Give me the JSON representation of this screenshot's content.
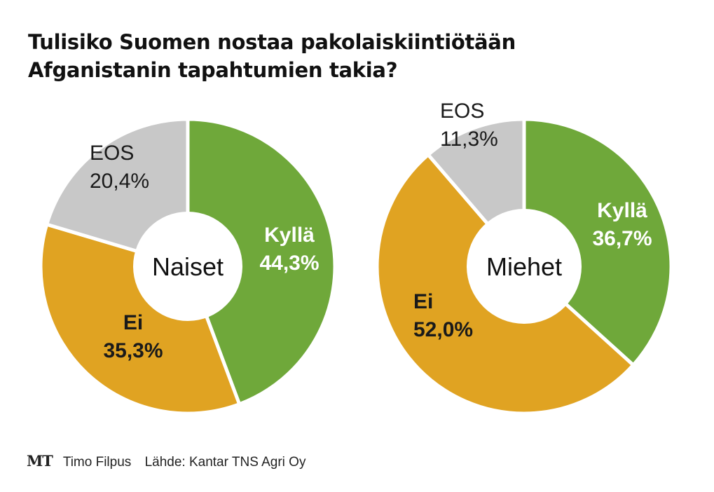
{
  "title": {
    "line1": "Tulisiko Suomen nostaa pakolaiskiintiötään",
    "line2": "Afganistanin tapahtumien takia?"
  },
  "colors": {
    "kylla": "#6fa83a",
    "ei": "#e0a322",
    "eos": "#c8c8c8",
    "ring": "#ffffff"
  },
  "chart_data": [
    {
      "type": "pie",
      "center_label": "Naiset",
      "slices": [
        {
          "label": "Kyllä",
          "value": 44.3,
          "value_label": "44,3%",
          "color": "#6fa83a"
        },
        {
          "label": "Ei",
          "value": 35.3,
          "value_label": "35,3%",
          "color": "#e0a322"
        },
        {
          "label": "EOS",
          "value": 20.4,
          "value_label": "20,4%",
          "color": "#c8c8c8"
        }
      ]
    },
    {
      "type": "pie",
      "center_label": "Miehet",
      "slices": [
        {
          "label": "Kyllä",
          "value": 36.7,
          "value_label": "36,7%",
          "color": "#6fa83a"
        },
        {
          "label": "Ei",
          "value": 52.0,
          "value_label": "52,0%",
          "color": "#e0a322"
        },
        {
          "label": "EOS",
          "value": 11.3,
          "value_label": "11,3%",
          "color": "#c8c8c8"
        }
      ]
    }
  ],
  "footer": {
    "logo": "MT",
    "author": "Timo Filpus",
    "source": "Lähde: Kantar TNS Agri Oy"
  }
}
